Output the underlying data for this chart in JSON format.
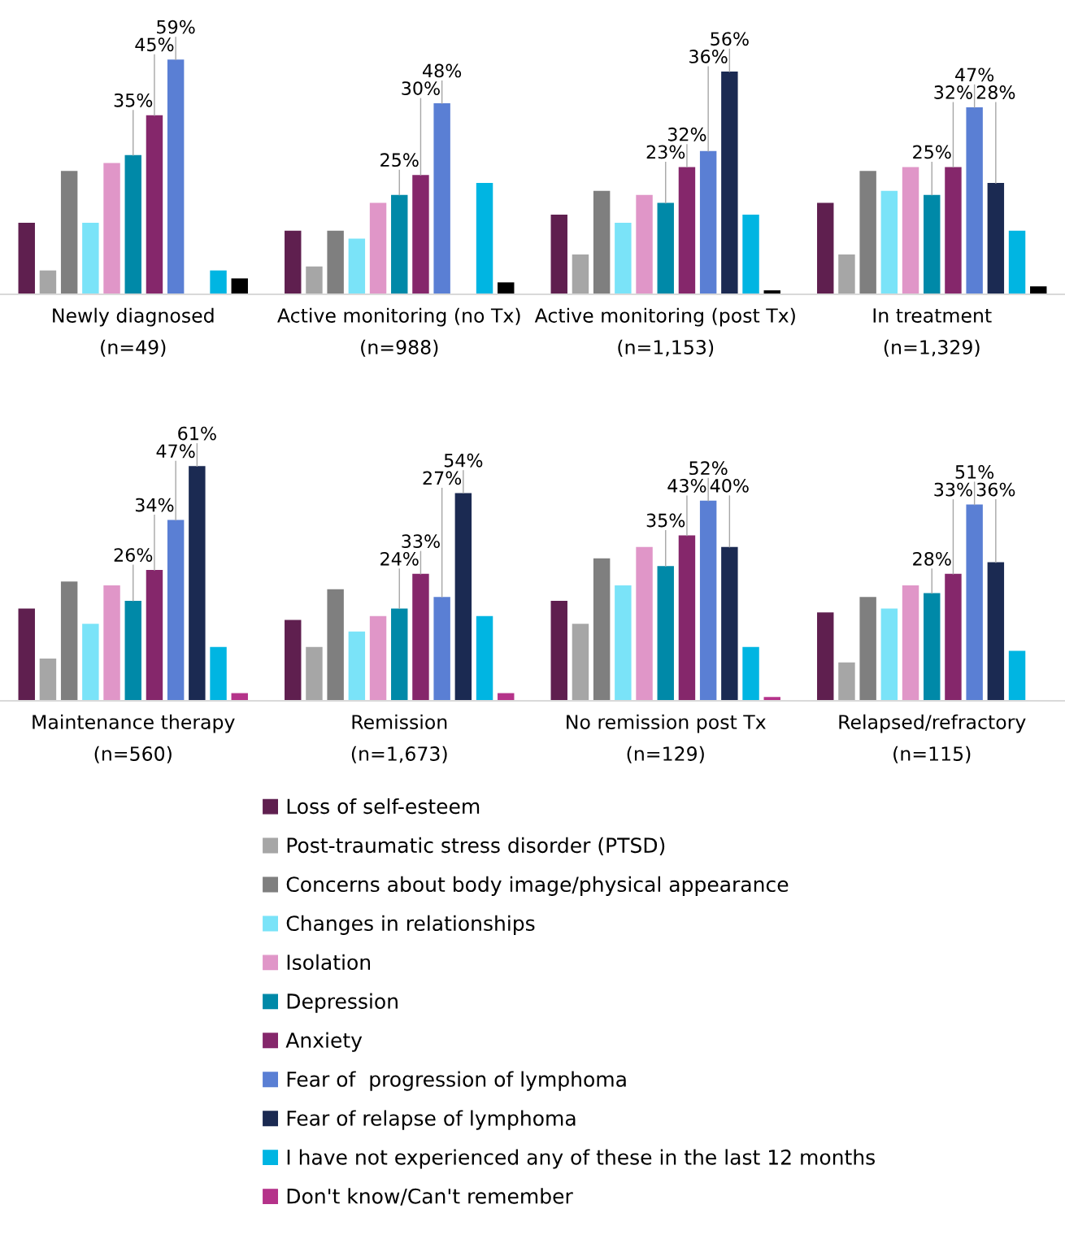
{
  "chart_data": [
    {
      "type": "bar",
      "categories": [
        "Newly diagnosed\n(n=49)",
        "Active monitoring (no Tx)\n(n=988)",
        "Active monitoring (post Tx)\n(n=1,153)",
        "In treatment\n(n=1,329)"
      ],
      "legend": false,
      "series": [
        {
          "color": "#5f1f4f",
          "values": [
            18,
            16,
            20,
            23
          ]
        },
        {
          "color": "#a6a6a6",
          "values": [
            6,
            7,
            10,
            10
          ]
        },
        {
          "color": "#7f7f7f",
          "values": [
            31,
            16,
            26,
            31
          ]
        },
        {
          "color": "#7ae3f8",
          "values": [
            18,
            14,
            18,
            26
          ]
        },
        {
          "color": "#e096c8",
          "values": [
            33,
            23,
            25,
            32
          ]
        },
        {
          "color": "#0089a8",
          "values": [
            35,
            25,
            23,
            25
          ],
          "value_labels": [
            "35%",
            "25%",
            "23%",
            "25%"
          ]
        },
        {
          "color": "#85276b",
          "values": [
            45,
            30,
            32,
            32
          ],
          "value_labels": [
            "45%",
            "30%",
            "32%",
            "32%"
          ]
        },
        {
          "color": "#5a7fd4",
          "values": [
            59,
            48,
            36,
            47
          ],
          "value_labels": [
            "59%",
            "48%",
            "36%",
            "47%"
          ]
        },
        {
          "color": "#1b2a52",
          "values": [
            null,
            null,
            56,
            28
          ],
          "value_labels": [
            null,
            null,
            "56%",
            "28%"
          ]
        },
        {
          "color": "#00b5e2",
          "values": [
            6,
            28,
            20,
            16
          ]
        },
        {
          "color": "#000000",
          "values": [
            4,
            3,
            1,
            2
          ]
        }
      ]
    },
    {
      "type": "bar",
      "categories": [
        "Maintenance therapy\n(n=560)",
        "Remission\n(n=1,673)",
        "No remission post Tx\n(n=129)",
        "Relapsed/refractory\n(n=115)"
      ],
      "legend": "bottom",
      "series": [
        {
          "name": "Loss of self-esteem",
          "color": "#5f1f4f",
          "values": [
            24,
            21,
            26,
            23
          ]
        },
        {
          "name": "Post-traumatic stress disorder (PTSD)",
          "color": "#a6a6a6",
          "values": [
            11,
            14,
            20,
            10
          ]
        },
        {
          "name": "Concerns about body image/physical appearance",
          "color": "#7f7f7f",
          "values": [
            31,
            29,
            37,
            27
          ]
        },
        {
          "name": "Changes in relationships",
          "color": "#7ae3f8",
          "values": [
            20,
            18,
            30,
            24
          ]
        },
        {
          "name": "Isolation",
          "color": "#e096c8",
          "values": [
            30,
            22,
            40,
            30
          ]
        },
        {
          "name": "Depression",
          "color": "#0089a8",
          "values": [
            26,
            24,
            35,
            28
          ],
          "value_labels": [
            "26%",
            "24%",
            "35%",
            "28%"
          ]
        },
        {
          "name": "Anxiety",
          "color": "#85276b",
          "values": [
            34,
            33,
            43,
            33
          ],
          "value_labels": [
            "34%",
            "33%",
            "43%",
            "33%"
          ]
        },
        {
          "name": "Fear of  progression of lymphoma",
          "color": "#5a7fd4",
          "values": [
            47,
            27,
            52,
            51
          ],
          "value_labels": [
            "47%",
            "27%",
            "52%",
            "51%"
          ]
        },
        {
          "name": "Fear of relapse of lymphoma",
          "color": "#1b2a52",
          "values": [
            61,
            54,
            40,
            36
          ],
          "value_labels": [
            "61%",
            "54%",
            "40%",
            "36%"
          ]
        },
        {
          "name": "I have not experienced any of these in the last 12 months",
          "color": "#00b5e2",
          "values": [
            14,
            22,
            14,
            13
          ]
        },
        {
          "name": "Don't know/Can't remember",
          "color": "#b5338a",
          "values": [
            2,
            2,
            1,
            null
          ]
        }
      ]
    }
  ]
}
